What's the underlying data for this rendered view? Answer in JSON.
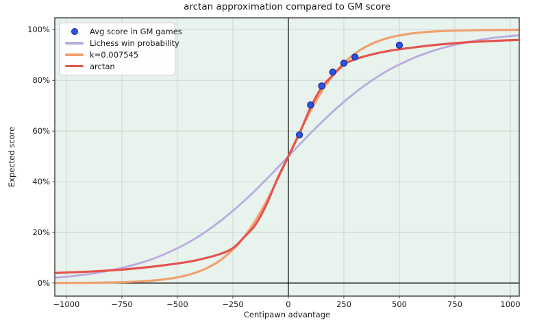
{
  "chart_data": {
    "type": "line",
    "title": "arctan approximation compared to GM score",
    "xlabel": "Centipawn advantage",
    "ylabel": "Expected score",
    "xlim": [
      -1052,
      1040
    ],
    "ylim": [
      -5.15,
      104.7
    ],
    "grid": true,
    "legend_position": "upper left",
    "x_ticks": [
      {
        "v": -1000,
        "label": "−1000"
      },
      {
        "v": -750,
        "label": "−750"
      },
      {
        "v": -500,
        "label": "−500"
      },
      {
        "v": -250,
        "label": "−250"
      },
      {
        "v": 0,
        "label": "0"
      },
      {
        "v": 250,
        "label": "250"
      },
      {
        "v": 500,
        "label": "500"
      },
      {
        "v": 750,
        "label": "750"
      },
      {
        "v": 1000,
        "label": "1000"
      }
    ],
    "y_ticks": [
      {
        "v": 0,
        "label": "0%"
      },
      {
        "v": 20,
        "label": "20%"
      },
      {
        "v": 40,
        "label": "40%"
      },
      {
        "v": 60,
        "label": "60%"
      },
      {
        "v": 80,
        "label": "80%"
      },
      {
        "v": 100,
        "label": "100%"
      }
    ],
    "scatter": {
      "name": "Avg score in GM games",
      "fill": "#2b54e4",
      "edge": "#1b2a9b",
      "radius": 4.5,
      "points": [
        [
          50,
          58.5
        ],
        [
          100,
          70.3
        ],
        [
          150,
          77.8
        ],
        [
          200,
          83.3
        ],
        [
          250,
          86.8
        ],
        [
          300,
          89.2
        ],
        [
          500,
          93.9
        ]
      ]
    },
    "series": [
      {
        "name": "Lichess win probability",
        "color": "#b9abdf",
        "width": 2.8,
        "x": [
          -1050,
          -975,
          -900,
          -825,
          -750,
          -675,
          -600,
          -525,
          -450,
          -375,
          -300,
          -225,
          -150,
          -75,
          0,
          75,
          150,
          225,
          300,
          375,
          450,
          525,
          600,
          675,
          750,
          825,
          900,
          975,
          1050
        ],
        "y": [
          2.1,
          2.7,
          3.5,
          4.6,
          6.0,
          7.7,
          9.9,
          12.7,
          16.0,
          20.1,
          24.9,
          30.4,
          36.5,
          43.1,
          50,
          56.9,
          63.5,
          69.6,
          75.1,
          79.9,
          84.0,
          87.3,
          90.1,
          92.3,
          94.0,
          95.4,
          96.5,
          97.3,
          97.9
        ]
      },
      {
        "name": "k=0.007545",
        "color": "#f0a070",
        "width": 3.2,
        "x": [
          -1050,
          -975,
          -900,
          -825,
          -750,
          -675,
          -600,
          -525,
          -450,
          -375,
          -300,
          -225,
          -150,
          -75,
          0,
          75,
          150,
          225,
          300,
          375,
          450,
          525,
          600,
          675,
          750,
          825,
          900,
          975,
          1050
        ],
        "y": [
          0.04,
          0.06,
          0.11,
          0.2,
          0.35,
          0.61,
          1.07,
          1.87,
          3.24,
          5.58,
          9.42,
          15.48,
          24.39,
          36.22,
          50,
          63.78,
          75.61,
          84.52,
          90.58,
          94.42,
          96.76,
          98.13,
          98.93,
          99.39,
          99.65,
          99.8,
          99.89,
          99.94,
          99.96
        ]
      },
      {
        "name": "arctan",
        "color": "#e5534e",
        "width": 3.2,
        "x": [
          -1050,
          -900,
          -750,
          -600,
          -450,
          -375,
          -300,
          -250,
          -200,
          -150,
          -100,
          -50,
          0,
          50,
          100,
          150,
          200,
          250,
          300,
          375,
          450,
          600,
          750,
          900,
          1050
        ],
        "y": [
          4.0,
          4.5,
          5.3,
          6.6,
          8.4,
          9.8,
          11.7,
          13.8,
          18.0,
          22.8,
          30.7,
          41.0,
          50,
          59.0,
          69.3,
          77.2,
          82.0,
          86.2,
          88.3,
          90.2,
          91.6,
          93.4,
          94.7,
          95.5,
          96.0
        ]
      }
    ],
    "colors": {
      "figure_bg": "#ffffff",
      "plot_bg": "#e8f3ed",
      "grid": "#ccd9d3",
      "spine": "#4a4a4a",
      "zero_line": "#111111",
      "tick": "#333333",
      "text": "#1a1a1a"
    }
  }
}
